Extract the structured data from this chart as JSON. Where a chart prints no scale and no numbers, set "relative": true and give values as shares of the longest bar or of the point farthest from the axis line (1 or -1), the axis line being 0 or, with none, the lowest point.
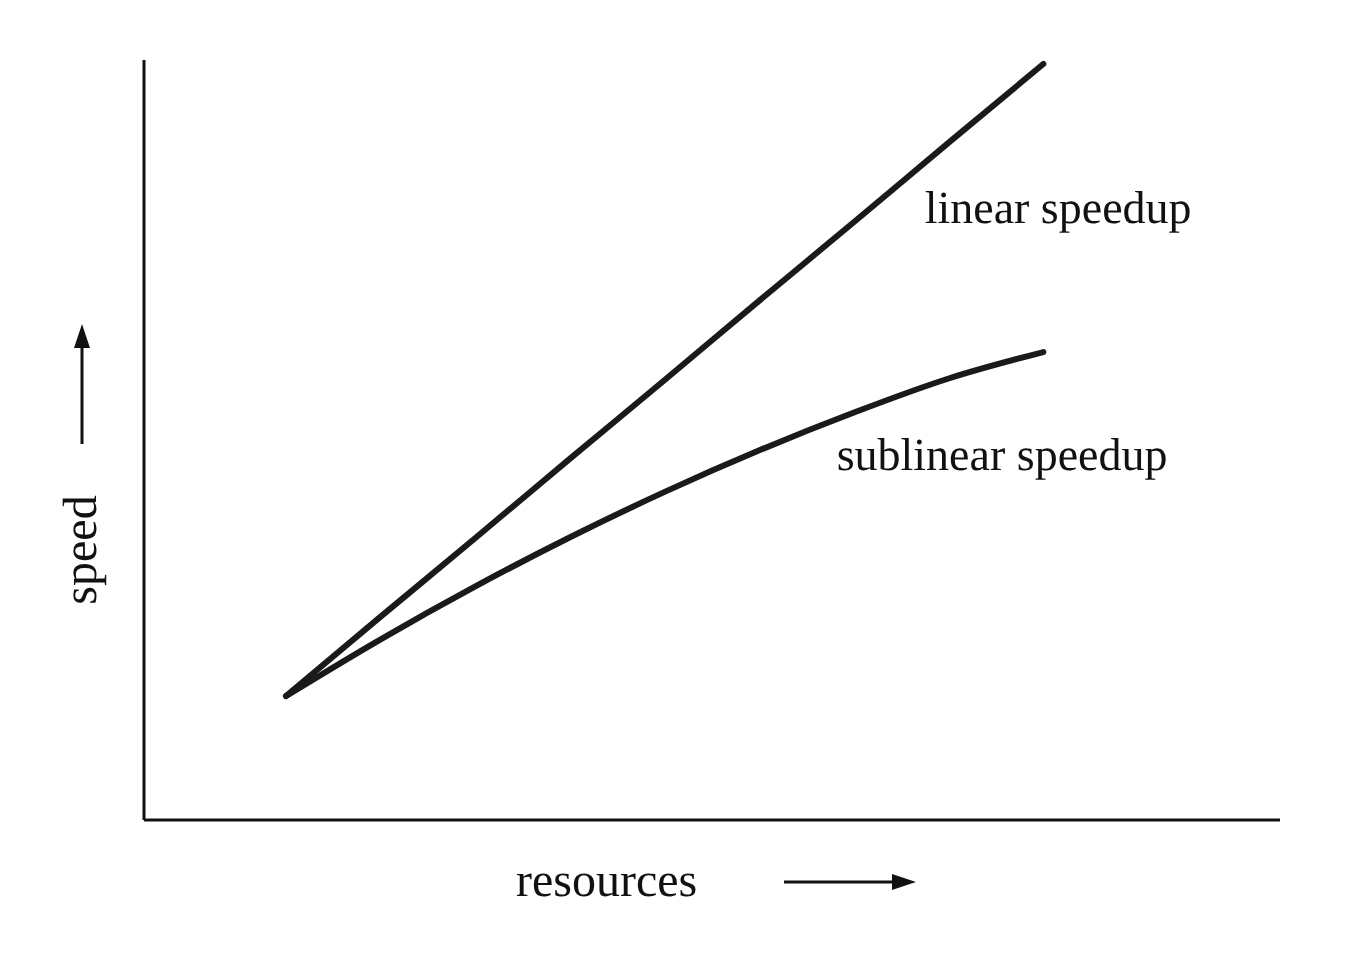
{
  "chart_data": {
    "type": "line",
    "relative": true,
    "xlabel": "resources",
    "ylabel": "speed",
    "categories": [
      null,
      null,
      null,
      null,
      null,
      null,
      null,
      null,
      null,
      null,
      null,
      null
    ],
    "series": [
      {
        "name": "linear speedup",
        "color": "#1a1a1a",
        "values": [
          null,
          0.164,
          0.269,
          0.373,
          0.478,
          0.582,
          0.687,
          0.791,
          0.896,
          1.0,
          null,
          null
        ]
      },
      {
        "name": "sublinear speedup",
        "color": "#1a1a1a",
        "values": [
          null,
          0.164,
          0.239,
          0.309,
          0.374,
          0.434,
          0.489,
          0.539,
          0.584,
          0.619,
          null,
          null
        ]
      }
    ]
  }
}
